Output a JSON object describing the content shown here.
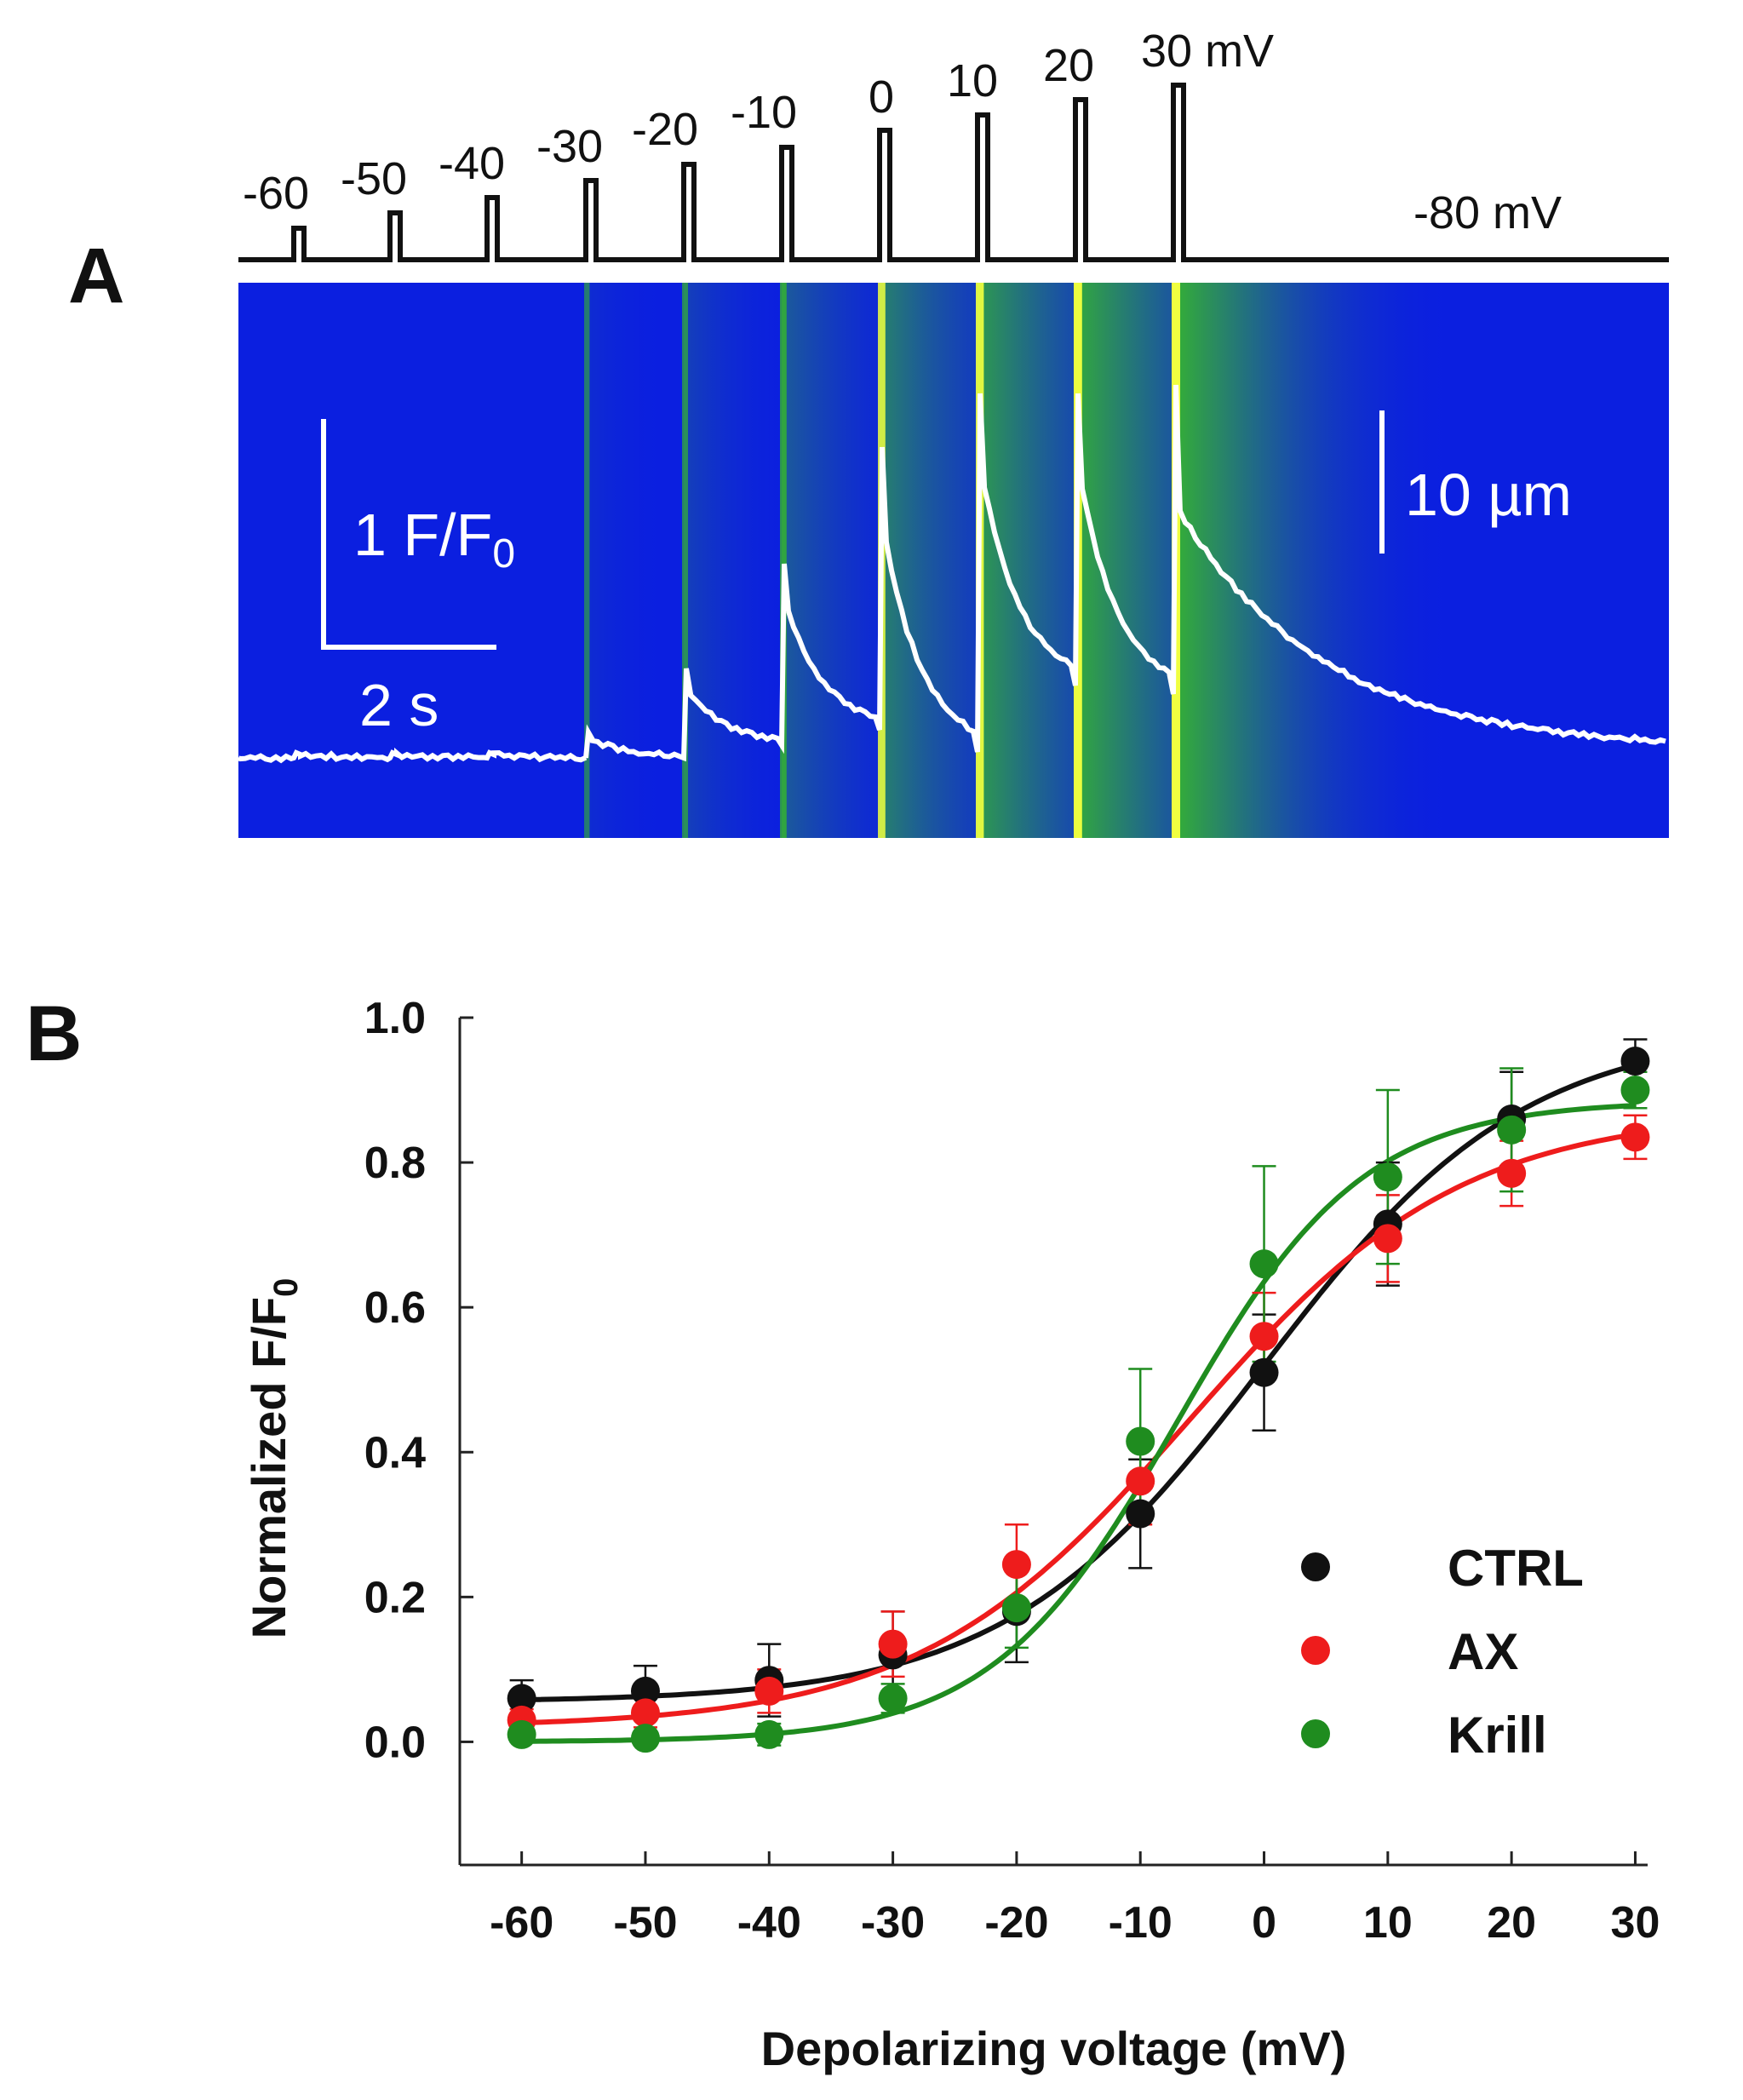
{
  "panel_a": {
    "label": "A",
    "step_labels": [
      "-60",
      "-50",
      "-40",
      "-30",
      "-20",
      "-10",
      "0",
      "10",
      "20",
      "30 mV"
    ],
    "holding_label": "-80 mV",
    "scale_fluorescence": "1 F/F",
    "scale_fluorescence_sub": "0",
    "scale_time": "2 s",
    "scale_length": "10 µm",
    "colors": {
      "background": "#0b1fe0",
      "trace": "#ffffff",
      "release": "#38c020",
      "peak": "#f0ff40"
    }
  },
  "panel_b": {
    "label": "B"
  },
  "chart_data": {
    "type": "scatter",
    "title": "",
    "xlabel": "Depolarizing voltage (mV)",
    "ylabel": "Normalized F/F",
    "ylabel_sub": "0",
    "x": [
      -60,
      -50,
      -40,
      -30,
      -20,
      -10,
      0,
      10,
      20,
      30
    ],
    "xlim": [
      -65,
      31
    ],
    "ylim": [
      -0.17,
      1.0
    ],
    "x_ticks": [
      "-60",
      "-50",
      "-40",
      "-30",
      "-20",
      "-10",
      "0",
      "10",
      "20",
      "30"
    ],
    "y_ticks": [
      "0.0",
      "0.2",
      "0.4",
      "0.6",
      "0.8",
      "1.0"
    ],
    "legend_position": "bottom-right",
    "series": [
      {
        "name": "CTRL",
        "color": "#111111",
        "values": [
          0.06,
          0.07,
          0.085,
          0.12,
          0.18,
          0.315,
          0.51,
          0.715,
          0.86,
          0.94
        ],
        "errors": [
          0.025,
          0.035,
          0.05,
          0.06,
          0.07,
          0.075,
          0.08,
          0.085,
          0.065,
          0.03
        ],
        "fit": {
          "kind": "boltzmann",
          "base": 0.055,
          "amp": 0.93,
          "v_half": 0.0,
          "k": 10.5
        }
      },
      {
        "name": "AX",
        "color": "#ee1c1c",
        "values": [
          0.03,
          0.04,
          0.07,
          0.135,
          0.245,
          0.36,
          0.56,
          0.695,
          0.785,
          0.835
        ],
        "errors": [
          0.015,
          0.02,
          0.03,
          0.045,
          0.055,
          0.06,
          0.06,
          0.06,
          0.045,
          0.03
        ],
        "fit": {
          "kind": "boltzmann",
          "base": 0.02,
          "amp": 0.85,
          "v_half": -6.0,
          "k": 11.0
        }
      },
      {
        "name": "Krill",
        "color": "#1f8c1f",
        "values": [
          0.01,
          0.005,
          0.01,
          0.06,
          0.185,
          0.415,
          0.66,
          0.78,
          0.845,
          0.9
        ],
        "errors": [
          0.01,
          0.01,
          0.015,
          0.02,
          0.055,
          0.1,
          0.135,
          0.12,
          0.085,
          0.025
        ],
        "fit": {
          "kind": "boltzmann",
          "base": 0.0,
          "amp": 0.885,
          "v_half": -7.0,
          "k": 7.5
        }
      }
    ]
  }
}
